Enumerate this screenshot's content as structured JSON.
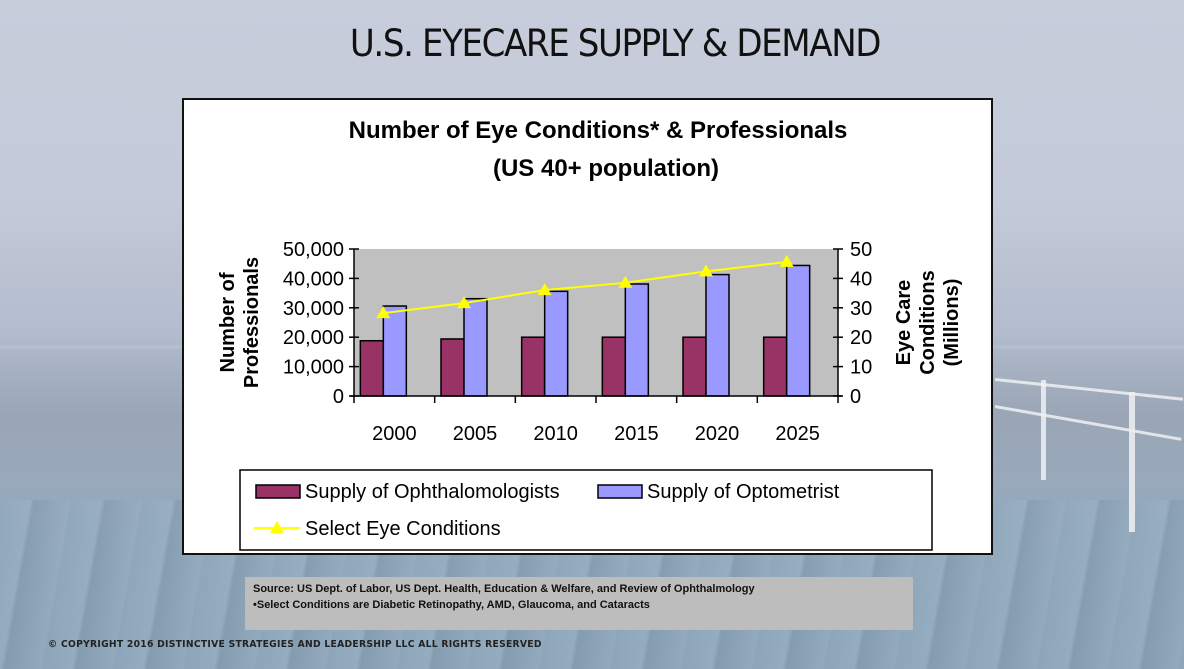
{
  "slide": {
    "title": "U.S. EYECARE SUPPLY & DEMAND",
    "source_line": "Source: US Dept. of Labor, US Dept. Health, Education & Welfare, and Review of Ophthalmology",
    "footnote": "•Select Conditions are Diabetic Retinopathy, AMD, Glaucoma, and Cataracts",
    "copyright": "© COPYRIGHT 2016 DISTINCTIVE STRATEGIES AND LEADERSHIP LLC ALL RIGHTS RESERVED"
  },
  "chart_data": {
    "type": "bar",
    "title": "Number of Eye Conditions* & Professionals",
    "subtitle": "(US 40+ population)",
    "categories": [
      "2000",
      "2005",
      "2010",
      "2015",
      "2020",
      "2025"
    ],
    "ylabel": [
      "Number of",
      "Professionals"
    ],
    "y2label": [
      "Eye Care",
      "Conditions",
      "(Millions)"
    ],
    "ylim": [
      0,
      50000
    ],
    "y2lim": [
      0,
      50
    ],
    "yticks": [
      "0",
      "10,000",
      "20,000",
      "30,000",
      "40,000",
      "50,000"
    ],
    "y2ticks": [
      "0",
      "10",
      "20",
      "30",
      "40",
      "50"
    ],
    "grid": false,
    "legend_position": "bottom",
    "series": [
      {
        "name": "Supply of Ophthalomologists",
        "type": "bar",
        "axis": "left",
        "color": "#993366",
        "values": [
          18800,
          19400,
          20000,
          20000,
          20000,
          20000
        ]
      },
      {
        "name": "Supply of Optometrist",
        "type": "bar",
        "axis": "left",
        "color": "#9999ff",
        "values": [
          30600,
          33100,
          35600,
          38100,
          41300,
          44400
        ]
      },
      {
        "name": "Select Eye Conditions",
        "type": "line",
        "axis": "right",
        "color": "#ffff00",
        "marker": "triangle",
        "values": [
          28.2,
          31.6,
          36.0,
          38.5,
          42.4,
          45.6
        ]
      }
    ],
    "plot_background": "#c0c0c0"
  }
}
